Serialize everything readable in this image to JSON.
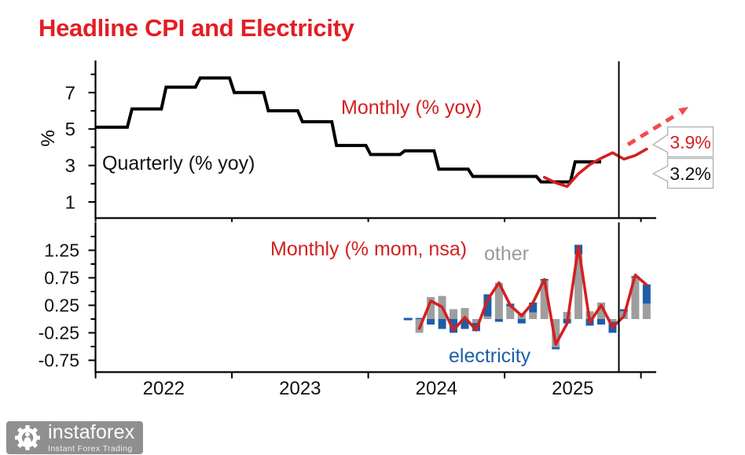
{
  "title": {
    "text": "Headline CPI and Electricity"
  },
  "labels": {
    "quarterly": "Quarterly (% yoy)",
    "monthly_yoy": "Monthly (% yoy)",
    "monthly_mom": "Monthly (% mom, nsa)",
    "other": "other",
    "electricity": "electricity",
    "y_axis_percent": "%"
  },
  "callouts": {
    "monthly_value": "3.9%",
    "quarterly_value": "3.2%"
  },
  "colors": {
    "line_red": "#d32020",
    "forecast_red": "#ee4d4d",
    "electricity_blue": "#1d5ea8",
    "other_gray": "#9e9e9e",
    "black": "#000000",
    "title_red": "#e31e24",
    "callout_border": "#b3b3b3",
    "logo_gray": "#8f8f8f"
  },
  "chart_data": [
    {
      "panel": "top",
      "type": "line",
      "ylabel": "%",
      "ylim": [
        0.2,
        8.7
      ],
      "yticks": [
        1,
        3,
        5,
        7
      ],
      "yticks_minor": [
        2,
        4,
        6,
        8
      ],
      "x_years": [
        2022,
        2023,
        2024,
        2025,
        2026
      ],
      "forecast_divider_year": 2025.84,
      "series": [
        {
          "name": "Quarterly (% yoy)",
          "type": "step",
          "color": "#000000",
          "quarters": [
            "2022Q1",
            "2022Q2",
            "2022Q3",
            "2022Q4",
            "2023Q1",
            "2023Q2",
            "2023Q3",
            "2023Q4",
            "2024Q1",
            "2024Q2",
            "2024Q3",
            "2024Q4",
            "2025Q1",
            "2025Q2",
            "2025Q3"
          ],
          "values": [
            5.1,
            6.1,
            7.3,
            7.8,
            7.0,
            6.0,
            5.4,
            4.1,
            3.6,
            3.8,
            2.8,
            2.4,
            2.4,
            2.1,
            3.2
          ]
        },
        {
          "name": "Monthly (% yoy)",
          "type": "line",
          "color": "#d32020",
          "months": [
            "2025-04",
            "2025-05",
            "2025-06",
            "2025-07",
            "2025-08",
            "2025-09",
            "2025-10",
            "2025-11",
            "2025-12",
            "2026-01"
          ],
          "values": [
            2.35,
            2.05,
            1.85,
            2.55,
            3.05,
            3.4,
            3.7,
            3.35,
            3.55,
            3.9
          ]
        }
      ],
      "annotations": [
        {
          "text": "3.9%",
          "series": "Monthly (% yoy)",
          "style": "callout-box, red text, dashed rising forecast arrow"
        },
        {
          "text": "3.2%",
          "series": "Quarterly (% yoy)",
          "style": "callout-box, black text"
        }
      ]
    },
    {
      "panel": "bottom",
      "type": "stacked-bar-with-line",
      "ylim": [
        -0.96,
        1.76
      ],
      "yticks": [
        1.25,
        0.75,
        0.25,
        -0.25,
        -0.75
      ],
      "yticks_minor": [
        1.5,
        1.0,
        0.5,
        0.0,
        -0.5
      ],
      "x_years": [
        2022,
        2023,
        2024,
        2025,
        2026
      ],
      "xtick_labels": [
        "2022",
        "2023",
        "2024",
        "2025"
      ],
      "forecast_divider_year": 2025.84,
      "months": [
        "2024-04",
        "2024-05",
        "2024-06",
        "2024-07",
        "2024-08",
        "2024-09",
        "2024-10",
        "2024-11",
        "2024-12",
        "2025-01",
        "2025-02",
        "2025-03",
        "2025-04",
        "2025-05",
        "2025-06",
        "2025-07",
        "2025-08",
        "2025-09",
        "2025-10",
        "2025-11",
        "2025-12",
        "2026-01"
      ],
      "series": [
        {
          "name": "other",
          "type": "bar",
          "color": "#9e9e9e",
          "values": [
            0,
            -0.25,
            0.4,
            0.42,
            0.18,
            0.2,
            -0.07,
            0.05,
            0.66,
            0.23,
            0.11,
            0.12,
            0.7,
            -0.51,
            0.13,
            1.18,
            0.14,
            0.3,
            -0.05,
            0.14,
            0.75,
            0.28
          ]
        },
        {
          "name": "electricity",
          "type": "bar",
          "color": "#1d5ea8",
          "values": [
            0,
            0.02,
            -0.1,
            -0.18,
            -0.25,
            -0.18,
            -0.15,
            0.4,
            -0.05,
            0.05,
            -0.08,
            0.18,
            0.03,
            -0.04,
            -0.08,
            0.17,
            -0.12,
            -0.1,
            -0.2,
            0.04,
            0.03,
            0.35
          ]
        },
        {
          "name": "Monthly (% mom, nsa)",
          "type": "line",
          "color": "#d32020",
          "values": [
            null,
            -0.17,
            0.33,
            0.22,
            -0.2,
            0.03,
            -0.2,
            0.35,
            0.66,
            0.25,
            0.06,
            0.3,
            0.72,
            -0.46,
            -0.08,
            1.32,
            -0.06,
            0.25,
            -0.15,
            0.05,
            0.8,
            0.62
          ]
        }
      ]
    }
  ],
  "logo": {
    "name": "instaforex",
    "tagline": "Instant Forex Trading"
  }
}
